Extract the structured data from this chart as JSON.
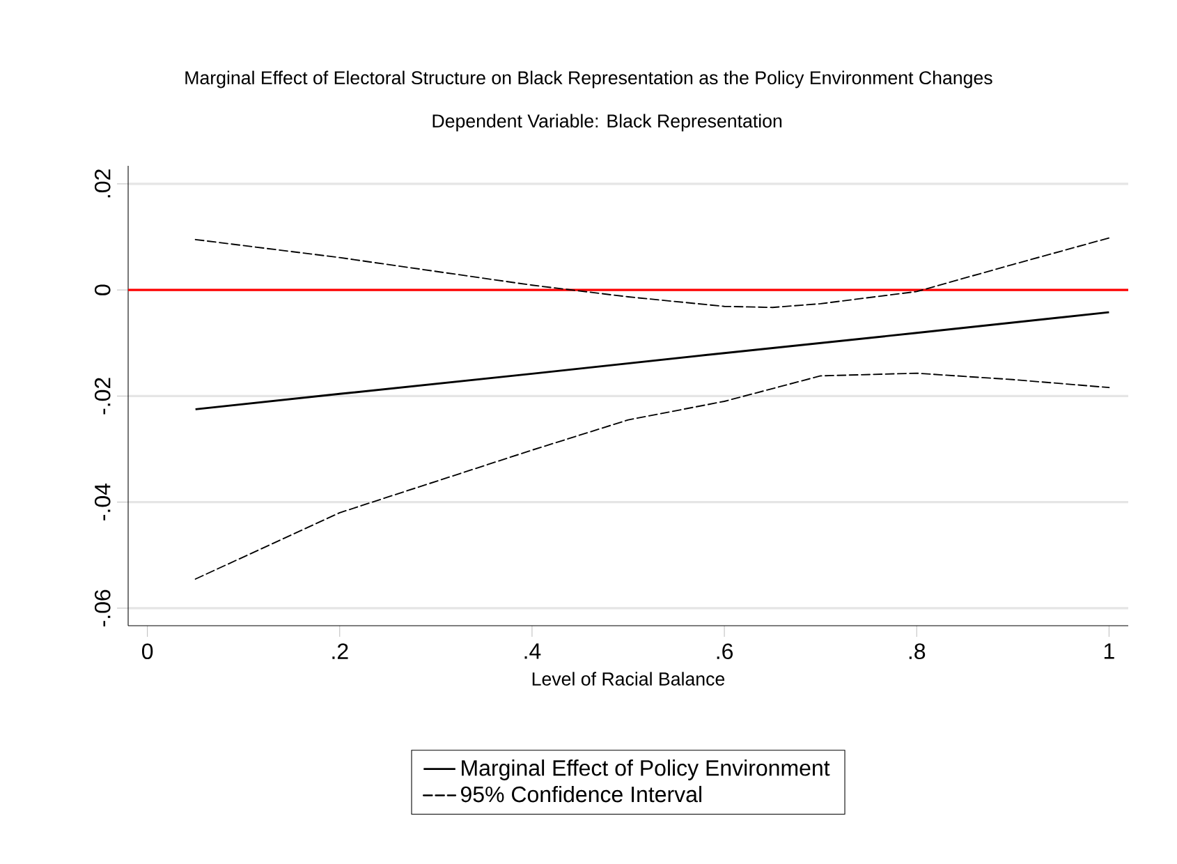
{
  "chart_data": {
    "type": "line",
    "title": "Marginal Effect of Electoral Structure on Black Representation as the Policy Environment Changes",
    "subtitle": "Dependent Variable: Black Representation",
    "xlabel": "Level of Racial Balance",
    "series": [
      {
        "name": "Marginal Effect of Policy Environment",
        "color": "#000000",
        "line_style": "solid",
        "x": [
          0.05,
          0.2,
          0.4,
          0.6,
          0.8,
          1
        ],
        "values": [
          -0.0225,
          -0.0196,
          -0.0158,
          -0.0119,
          -0.0081,
          -0.0042
        ]
      },
      {
        "name": "95% Confidence Interval",
        "color": "#000000",
        "line_style": "dashed",
        "x": [
          0.05,
          0.2,
          0.4,
          0.5,
          0.6,
          0.65,
          0.7,
          0.8,
          0.9,
          1
        ],
        "values": [
          0.0095,
          0.0061,
          0.0009,
          -0.0013,
          -0.0031,
          -0.0033,
          -0.0026,
          -0.0003,
          0.0048,
          0.0098
        ]
      },
      {
        "color": "#000000",
        "line_style": "dashed",
        "x": [
          0.05,
          0.2,
          0.4,
          0.5,
          0.6,
          0.7,
          0.8,
          0.9,
          1
        ],
        "values": [
          -0.0545,
          -0.042,
          -0.0302,
          -0.0245,
          -0.021,
          -0.0162,
          -0.0157,
          -0.0169,
          -0.0184
        ]
      }
    ],
    "xlim": [
      -0.02,
      1.02
    ],
    "xticks": [
      0,
      {
        "value": 0.2,
        "label": ".2"
      },
      {
        "value": 0.4,
        "label": ".4"
      },
      {
        "value": 0.6,
        "label": ".6"
      },
      {
        "value": 0.8,
        "label": ".8"
      },
      1
    ],
    "ylim": [
      -0.0633,
      0.0234
    ],
    "yticks": [
      {
        "value": -0.06,
        "label": "-.06"
      },
      {
        "value": -0.04,
        "label": "-.04"
      },
      {
        "value": -0.02,
        "label": "-.02"
      },
      0,
      {
        "value": 0.02,
        "label": ".02"
      }
    ],
    "ref_lines": [
      {
        "axis": "y",
        "value": 0,
        "color": "#ff0000"
      }
    ],
    "grid": "y",
    "legend": "bottom"
  }
}
